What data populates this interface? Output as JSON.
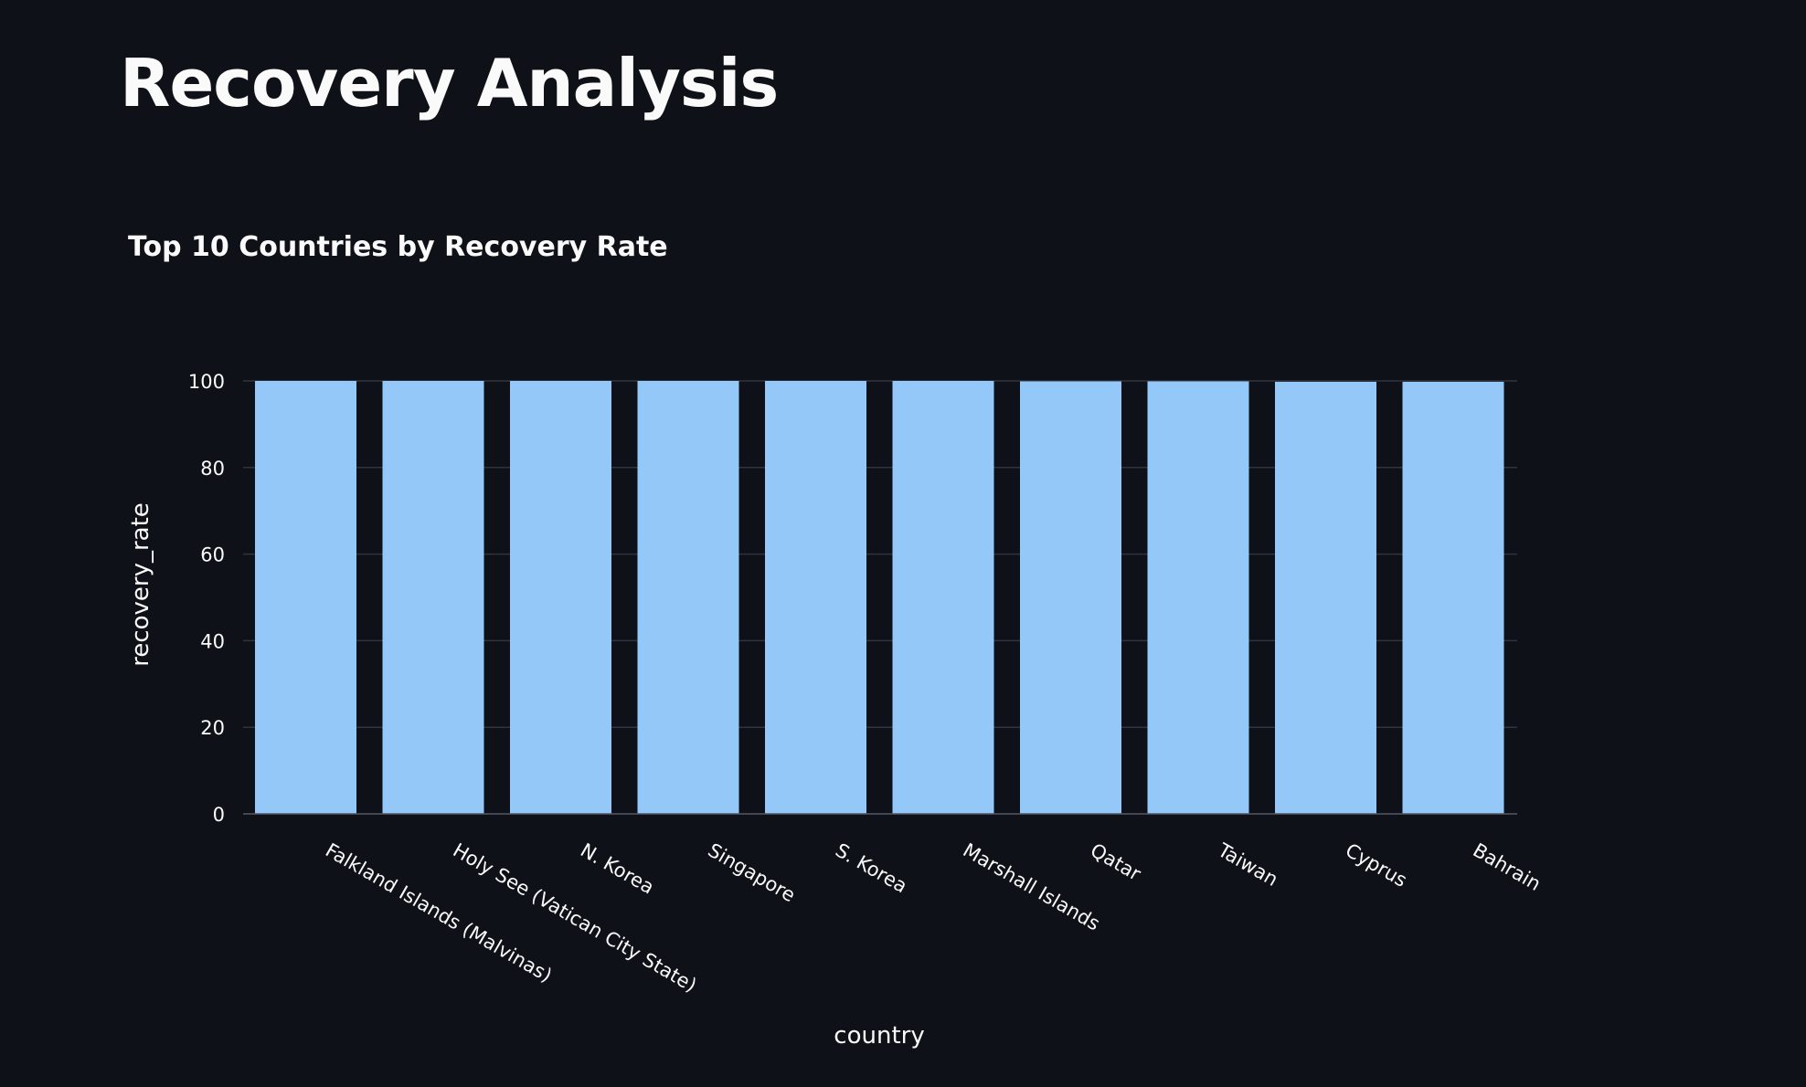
{
  "page": {
    "title": "Recovery Analysis"
  },
  "colors": {
    "background": "#0e1117",
    "bar": "#93c8f8",
    "text": "#fafafa",
    "grid": "#31333f"
  },
  "chart_data": {
    "type": "bar",
    "title": "Top 10 Countries by Recovery Rate",
    "xlabel": "country",
    "ylabel": "recovery_rate",
    "ylim": [
      0,
      100
    ],
    "yticks": [
      0,
      20,
      40,
      60,
      80,
      100
    ],
    "grid": true,
    "categories": [
      "Falkland Islands (Malvinas)",
      "Holy See (Vatican City State)",
      "N. Korea",
      "Singapore",
      "S. Korea",
      "Marshall Islands",
      "Qatar",
      "Taiwan",
      "Cyprus",
      "Bahrain"
    ],
    "values": [
      100,
      100,
      100,
      100,
      100,
      100,
      99.9,
      99.9,
      99.8,
      99.8
    ]
  }
}
